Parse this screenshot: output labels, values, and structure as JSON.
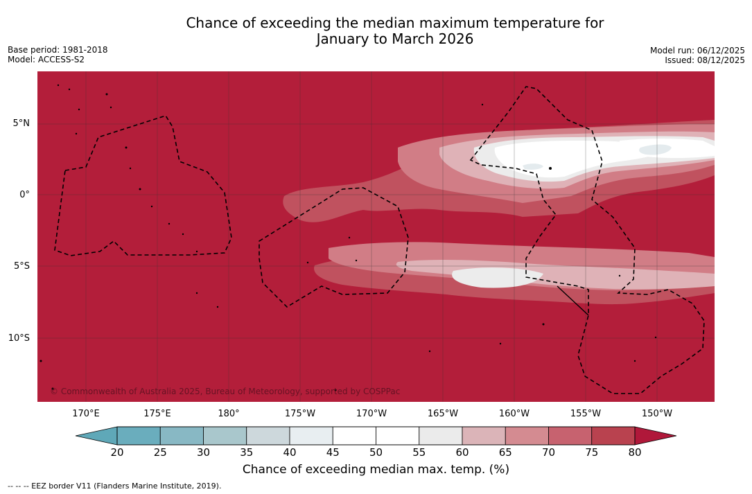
{
  "title": {
    "line1": "Chance of exceeding the median maximum temperature for",
    "line2": "January to March 2026"
  },
  "meta_left": {
    "base_period": "Base period: 1981-2018",
    "model": "Model: ACCESS-S2"
  },
  "meta_right": {
    "model_run": "Model run: 06/12/2025",
    "issued": "Issued: 08/12/2025"
  },
  "map": {
    "lat_labels": [
      "5°N",
      "0°",
      "5°S",
      "10°S"
    ],
    "lon_labels": [
      "170°E",
      "175°E",
      "180°",
      "175°W",
      "170°W",
      "165°W",
      "160°W",
      "155°W",
      "150°W"
    ],
    "copyright": "© Commonwealth of Australia 2025, Bureau of Meteorology, supported by COSPPac",
    "background_color": "#b31e3a"
  },
  "colorbar": {
    "ticks": [
      "20",
      "25",
      "30",
      "35",
      "40",
      "45",
      "50",
      "55",
      "60",
      "65",
      "70",
      "75",
      "80"
    ],
    "colors": [
      "#5fa8b8",
      "#6aadbd",
      "#88b8c4",
      "#a9c7cc",
      "#cdd8dc",
      "#e8eef1",
      "#ffffff",
      "#ffffff",
      "#ebebeb",
      "#dbb4b8",
      "#d48b91",
      "#c7626f",
      "#b9424f",
      "#b0183a"
    ],
    "label": "Chance of exceeding median max. temp. (%)"
  },
  "footer": {
    "legend": "--  --  -- EEZ border V11 (Flanders Marine Institute, 2019)."
  }
}
